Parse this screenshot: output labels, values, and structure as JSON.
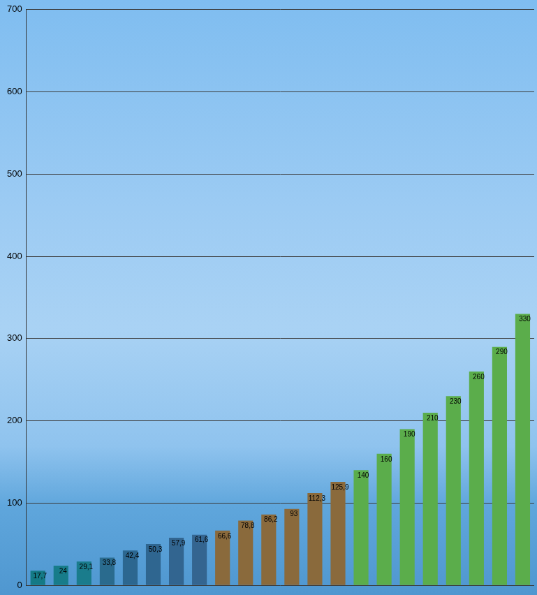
{
  "chart_data": {
    "type": "bar",
    "categories": [
      null,
      null,
      null,
      null,
      null,
      null,
      null,
      null,
      null,
      null,
      null,
      null,
      null,
      null,
      null,
      null,
      null,
      null,
      null,
      null,
      null,
      null
    ],
    "values": [
      17.7,
      24,
      29.1,
      33.8,
      42.4,
      50.3,
      57.9,
      61.6,
      66.6,
      78.8,
      86.2,
      93,
      112.3,
      125.9,
      140,
      160,
      190,
      210,
      230,
      260,
      290,
      330
    ],
    "value_labels": [
      "17,7",
      "24",
      "29,1",
      "33,8",
      "42,4",
      "50,3",
      "57,9",
      "61,6",
      "66,6",
      "78,8",
      "86,2",
      "93",
      "112,3",
      "125,9",
      "140",
      "160",
      "190",
      "210",
      "230",
      "260",
      "290",
      "330"
    ],
    "colors": [
      "#147a86",
      "#177c8a",
      "#1a7c8c",
      "#2a6b8e",
      "#2c6790",
      "#2f6690",
      "#326590",
      "#346590",
      "#8a6a3c",
      "#8a6a3c",
      "#8a6a3c",
      "#8a6a3c",
      "#8a6a3c",
      "#8a6a3c",
      "#5bad4b",
      "#5bad4b",
      "#5bad4b",
      "#5bad4b",
      "#5bad4b",
      "#5bad4b",
      "#5bad4b",
      "#5bad4b"
    ],
    "ylim": [
      0,
      700
    ],
    "yticks": [
      0,
      100,
      200,
      300,
      400,
      500,
      600,
      700
    ],
    "grid": true,
    "data_labels": true,
    "tick_labels": "y"
  }
}
